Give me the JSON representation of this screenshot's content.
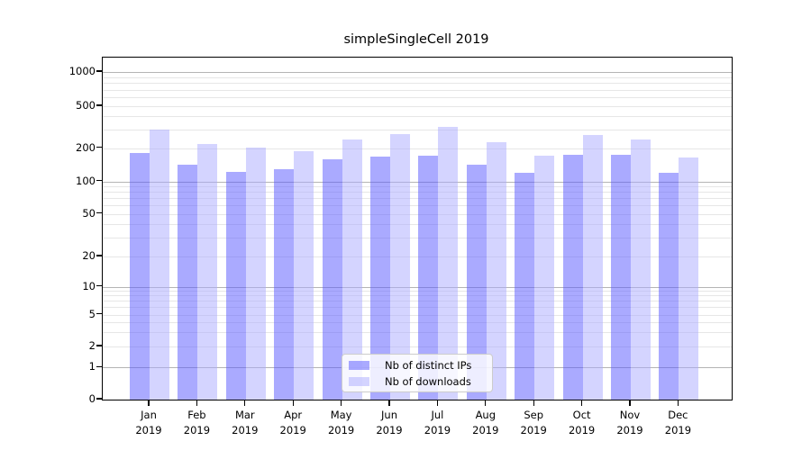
{
  "title": "simpleSingleCell 2019",
  "colors": {
    "bar_ips": "#5555ff",
    "bar_downloads": "#aaaaff",
    "bar_alpha": 0.5,
    "grid_major": "#b4b4b4",
    "grid_minor": "#e6e6e6",
    "spine": "#000000",
    "legend_border": "#cccccc"
  },
  "chart_data": {
    "type": "bar",
    "title": "simpleSingleCell 2019",
    "categories": [
      "Jan 2019",
      "Feb 2019",
      "Mar 2019",
      "Apr 2019",
      "May 2019",
      "Jun 2019",
      "Jul 2019",
      "Aug 2019",
      "Sep 2019",
      "Oct 2019",
      "Nov 2019",
      "Dec 2019"
    ],
    "x_tick_line1": [
      "Jan",
      "Feb",
      "Mar",
      "Apr",
      "May",
      "Jun",
      "Jul",
      "Aug",
      "Sep",
      "Oct",
      "Nov",
      "Dec"
    ],
    "x_tick_line2": [
      "2019",
      "2019",
      "2019",
      "2019",
      "2019",
      "2019",
      "2019",
      "2019",
      "2019",
      "2019",
      "2019",
      "2019"
    ],
    "series": [
      {
        "name": "Nb of distinct IPs",
        "color": "#5555ff",
        "alpha": 0.5,
        "values": [
          180,
          142,
          123,
          130,
          159,
          168,
          171,
          142,
          120,
          175,
          175,
          120
        ]
      },
      {
        "name": "Nb of downloads",
        "color": "#aaaaff",
        "alpha": 0.5,
        "values": [
          300,
          219,
          202,
          187,
          240,
          270,
          315,
          228,
          172,
          268,
          240,
          163
        ]
      }
    ],
    "xlabel": "",
    "ylabel": "",
    "yscale": "symlog",
    "y_ticks": [
      0,
      1,
      2,
      5,
      10,
      20,
      50,
      100,
      200,
      500,
      1000
    ],
    "y_tick_labels": [
      "0",
      "1",
      "2",
      "5",
      "10",
      "20",
      "50",
      "100",
      "200",
      "500",
      "1000"
    ],
    "ylim": [
      0,
      1370
    ],
    "grid": true,
    "legend_position": "lower center",
    "legend_entries": [
      "Nb of distinct IPs",
      "Nb of downloads"
    ]
  }
}
